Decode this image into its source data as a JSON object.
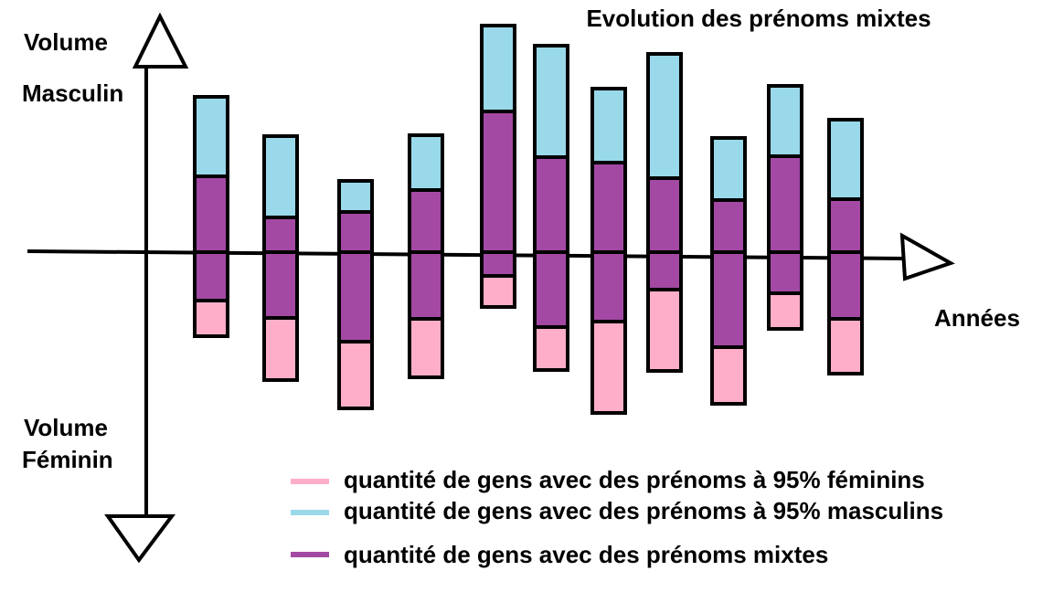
{
  "chart_data": {
    "type": "diverging-stacked-bar",
    "title": "Evolution des prénoms mixtes",
    "y_label_up": [
      "Volume",
      "Masculin"
    ],
    "y_label_down": [
      "Volume",
      "Féminin"
    ],
    "x_label": "Années",
    "ylim": [
      -372,
      276
    ],
    "series": [
      {
        "name": "quantité de gens avec des prénoms à 95% féminins",
        "color": "#ffaec9",
        "direction": "down",
        "values": [
          39,
          68,
          73,
          64,
          34,
          47,
          100,
          89,
          62,
          39,
          60
        ]
      },
      {
        "name": "quantité de gens avec des prénoms à 95% masculins",
        "color": "#99d9ea",
        "direction": "up",
        "values": [
          87,
          89,
          34,
          60,
          94,
          122,
          81,
          136,
          68,
          77,
          87
        ]
      },
      {
        "name": "quantité de gens avec des prénoms mixtes",
        "color": "#a349a4",
        "values": [
          83,
          38,
          44,
          68,
          154,
          104,
          98,
          81,
          57,
          105,
          58
        ],
        "values_below": [
          53,
          72,
          98,
          73,
          26,
          82,
          76,
          41,
          104,
          45,
          73
        ]
      }
    ]
  }
}
